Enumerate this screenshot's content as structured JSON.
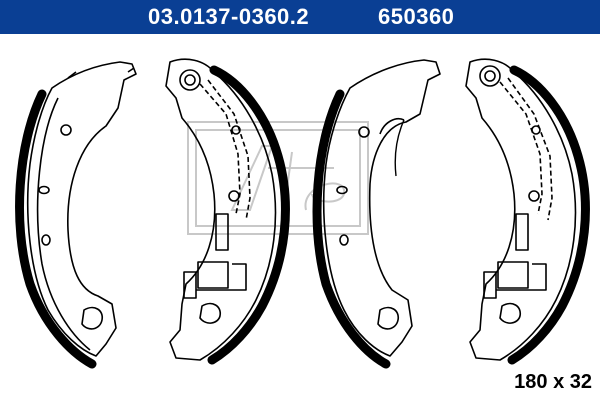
{
  "header": {
    "part_number": "03.0137-0360.2",
    "reference_number": "650360"
  },
  "dimensions": "180 x 32",
  "colors": {
    "header_background": "#0a3f94",
    "header_text": "#ffffff",
    "line_art": "#000000",
    "watermark": "#c8c8c8"
  },
  "drawing": {
    "items": [
      {
        "name": "brake-shoe-1"
      },
      {
        "name": "brake-shoe-2"
      },
      {
        "name": "brake-shoe-3"
      },
      {
        "name": "brake-shoe-4"
      }
    ],
    "watermark_icon": "ate-logo-icon"
  }
}
